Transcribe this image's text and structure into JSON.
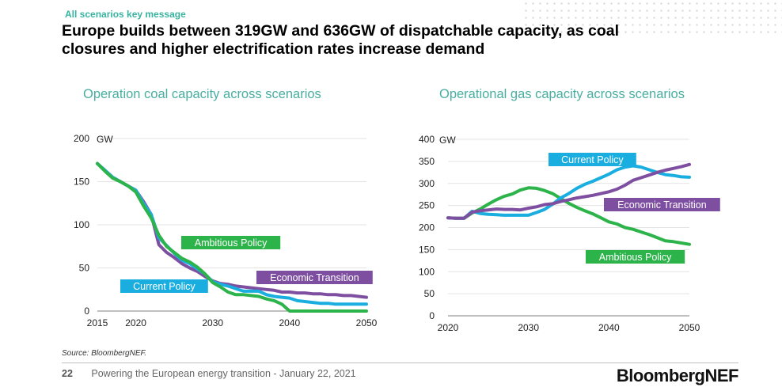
{
  "kicker": "All scenarios key message",
  "headline": "Europe builds between 319GW and 636GW of dispatchable capacity, as coal closures and higher electrification rates increase demand",
  "source": "Source: BloombergNEF.",
  "footer": {
    "page": "22",
    "text": "Powering the European energy transition - January 22, 2021",
    "brand": "BloombergNEF"
  },
  "colors": {
    "ambitious": "#2cb34a",
    "current": "#1aaee0",
    "economic": "#7e4fa0",
    "title": "#48aea0"
  },
  "chart_data": [
    {
      "type": "line",
      "title": "Operation coal capacity across scenarios",
      "ylabel": "GW",
      "xlim": [
        2015,
        2050
      ],
      "ylim": [
        0,
        200
      ],
      "xticks": [
        2015,
        2020,
        2030,
        2040,
        2050
      ],
      "yticks": [
        0,
        50,
        100,
        150,
        200
      ],
      "grid": true,
      "series": [
        {
          "name": "Economic Transition",
          "color": "#7e4fa0",
          "x": [
            2015,
            2016,
            2017,
            2018,
            2019,
            2020,
            2021,
            2022,
            2023,
            2024,
            2025,
            2026,
            2027,
            2028,
            2029,
            2030,
            2031,
            2032,
            2033,
            2034,
            2035,
            2036,
            2037,
            2038,
            2039,
            2040,
            2041,
            2042,
            2043,
            2044,
            2045,
            2046,
            2047,
            2048,
            2049,
            2050
          ],
          "values": [
            171,
            163,
            155,
            150,
            145,
            140,
            127,
            112,
            77,
            68,
            62,
            55,
            50,
            46,
            40,
            35,
            32,
            31,
            29,
            28,
            27,
            26,
            25,
            24,
            22,
            22,
            21,
            21,
            20,
            20,
            19,
            19,
            18,
            18,
            17,
            16
          ]
        },
        {
          "name": "Current Policy",
          "color": "#1aaee0",
          "x": [
            2015,
            2016,
            2017,
            2018,
            2019,
            2020,
            2021,
            2022,
            2023,
            2024,
            2025,
            2026,
            2027,
            2028,
            2029,
            2030,
            2031,
            2032,
            2033,
            2034,
            2035,
            2036,
            2037,
            2038,
            2039,
            2040,
            2041,
            2042,
            2043,
            2044,
            2045,
            2046,
            2047,
            2048,
            2049,
            2050
          ],
          "values": [
            171,
            163,
            155,
            150,
            145,
            140,
            125,
            112,
            85,
            76,
            67,
            59,
            55,
            49,
            43,
            34,
            31,
            29,
            26,
            23,
            23,
            23,
            19,
            17,
            16,
            15,
            12,
            11,
            10,
            9,
            9,
            8,
            8,
            8,
            8,
            8
          ]
        },
        {
          "name": "Ambitious Policy",
          "color": "#2cb34a",
          "x": [
            2015,
            2016,
            2017,
            2018,
            2019,
            2020,
            2021,
            2022,
            2023,
            2024,
            2025,
            2026,
            2027,
            2028,
            2029,
            2030,
            2031,
            2032,
            2033,
            2034,
            2035,
            2036,
            2037,
            2038,
            2039,
            2040,
            2041,
            2042,
            2043,
            2044,
            2045,
            2046,
            2047,
            2048,
            2049,
            2050
          ],
          "values": [
            171,
            162,
            154,
            150,
            145,
            138,
            122,
            108,
            88,
            75,
            68,
            61,
            57,
            51,
            43,
            33,
            28,
            22,
            19,
            19,
            18,
            17,
            14,
            12,
            8,
            0,
            0,
            0,
            0,
            0,
            0,
            0,
            0,
            0,
            0,
            0
          ]
        }
      ],
      "labels": [
        {
          "series": "Ambitious Policy",
          "text": "Ambitious Policy"
        },
        {
          "series": "Current Policy",
          "text": "Current Policy"
        },
        {
          "series": "Economic Transition",
          "text": "Economic Transition"
        }
      ]
    },
    {
      "type": "line",
      "title": "Operational gas capacity across scenarios",
      "ylabel": "GW",
      "xlim": [
        2020,
        2050
      ],
      "ylim": [
        0,
        400
      ],
      "xticks": [
        2020,
        2030,
        2040,
        2050
      ],
      "yticks": [
        0,
        50,
        100,
        150,
        200,
        250,
        300,
        350,
        400
      ],
      "grid": true,
      "series": [
        {
          "name": "Ambitious Policy",
          "color": "#2cb34a",
          "x": [
            2020,
            2021,
            2022,
            2023,
            2024,
            2025,
            2026,
            2027,
            2028,
            2029,
            2030,
            2031,
            2032,
            2033,
            2034,
            2035,
            2036,
            2037,
            2038,
            2039,
            2040,
            2041,
            2042,
            2043,
            2044,
            2045,
            2046,
            2047,
            2048,
            2049,
            2050
          ],
          "values": [
            222,
            221,
            221,
            233,
            242,
            253,
            263,
            271,
            276,
            285,
            290,
            289,
            284,
            277,
            266,
            255,
            246,
            238,
            231,
            222,
            213,
            208,
            200,
            196,
            190,
            184,
            177,
            170,
            168,
            165,
            162
          ]
        },
        {
          "name": "Current Policy",
          "color": "#1aaee0",
          "x": [
            2020,
            2021,
            2022,
            2023,
            2024,
            2025,
            2026,
            2027,
            2028,
            2029,
            2030,
            2031,
            2032,
            2033,
            2034,
            2035,
            2036,
            2037,
            2038,
            2039,
            2040,
            2041,
            2042,
            2043,
            2044,
            2045,
            2046,
            2047,
            2048,
            2049,
            2050
          ],
          "values": [
            222,
            221,
            221,
            237,
            232,
            230,
            229,
            228,
            228,
            228,
            228,
            234,
            241,
            253,
            267,
            277,
            289,
            298,
            305,
            313,
            321,
            331,
            337,
            340,
            337,
            331,
            325,
            320,
            318,
            315,
            314
          ]
        },
        {
          "name": "Economic Transition",
          "color": "#7e4fa0",
          "x": [
            2020,
            2021,
            2022,
            2023,
            2024,
            2025,
            2026,
            2027,
            2028,
            2029,
            2030,
            2031,
            2032,
            2033,
            2034,
            2035,
            2036,
            2037,
            2038,
            2039,
            2040,
            2041,
            2042,
            2043,
            2044,
            2045,
            2046,
            2047,
            2048,
            2049,
            2050
          ],
          "values": [
            222,
            221,
            221,
            235,
            238,
            240,
            242,
            241,
            241,
            240,
            244,
            247,
            252,
            254,
            259,
            263,
            267,
            270,
            273,
            277,
            281,
            287,
            296,
            307,
            313,
            319,
            325,
            330,
            334,
            338,
            343
          ]
        }
      ],
      "labels": [
        {
          "series": "Current Policy",
          "text": "Current Policy"
        },
        {
          "series": "Economic Transition",
          "text": "Economic Transition"
        },
        {
          "series": "Ambitious Policy",
          "text": "Ambitious Policy"
        }
      ]
    }
  ]
}
